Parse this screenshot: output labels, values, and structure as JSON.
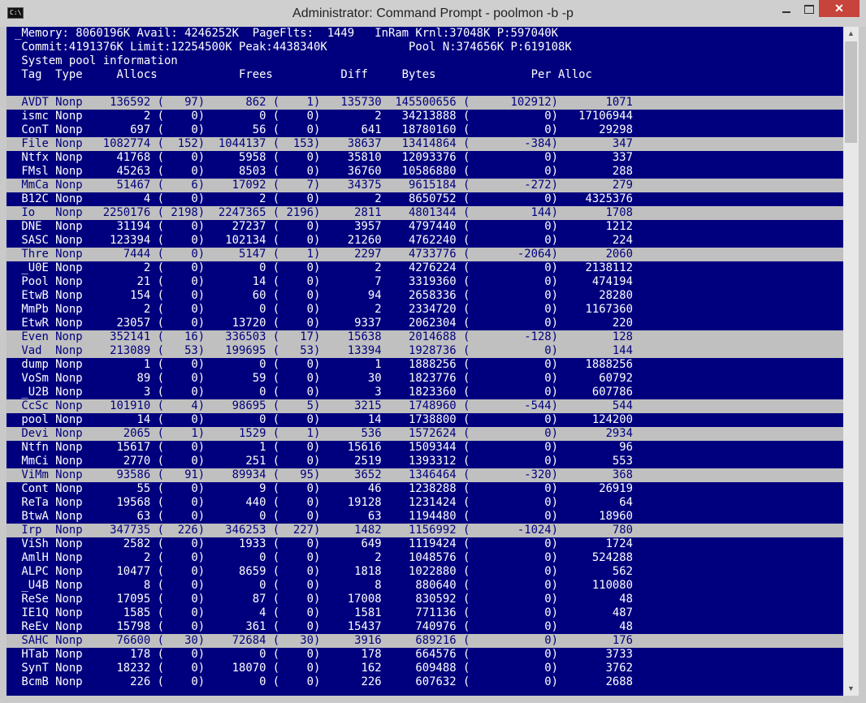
{
  "window": {
    "title": "Administrator: Command Prompt - poolmon  -b -p",
    "icon_label": "C:\\",
    "minimize_icon": "minimize-icon",
    "maximize_icon": "maximize-icon",
    "close_icon": "close-icon",
    "close_glyph": "✕"
  },
  "header": {
    "line1": "_Memory: 8060196K Avail: 4246252K  PageFlts:  1449   InRam Krnl:37048K P:597040K",
    "line2": " Commit:4191376K Limit:12254500K Peak:4438340K            Pool N:374656K P:619108K",
    "line3": " System pool information",
    "line4": " Tag  Type     Allocs            Frees          Diff     Bytes              Per Alloc",
    "line5": ""
  },
  "colors": {
    "console_bg": "#00007f",
    "console_fg": "#ffffff",
    "highlight_bg": "#c0c0c0",
    "highlight_fg": "#00007f"
  },
  "rows": [
    {
      "hl": true,
      "text": " AVDT Nonp    136592 (   97)      862 (    1)   135730  145500656 (      102912)       1071"
    },
    {
      "hl": false,
      "text": " ismc Nonp         2 (    0)        0 (    0)        2   34213888 (           0)   17106944"
    },
    {
      "hl": false,
      "text": " ConT Nonp       697 (    0)       56 (    0)      641   18780160 (           0)      29298"
    },
    {
      "hl": true,
      "text": " File Nonp   1082774 (  152)  1044137 (  153)    38637   13414864 (        -384)        347"
    },
    {
      "hl": false,
      "text": " Ntfx Nonp     41768 (    0)     5958 (    0)    35810   12093376 (           0)        337"
    },
    {
      "hl": false,
      "text": " FMsl Nonp     45263 (    0)     8503 (    0)    36760   10586880 (           0)        288"
    },
    {
      "hl": true,
      "text": " MmCa Nonp     51467 (    6)    17092 (    7)    34375    9615184 (        -272)        279"
    },
    {
      "hl": false,
      "text": " B12C Nonp         4 (    0)        2 (    0)        2    8650752 (           0)    4325376"
    },
    {
      "hl": true,
      "text": " Io   Nonp   2250176 ( 2198)  2247365 ( 2196)     2811    4801344 (         144)       1708"
    },
    {
      "hl": false,
      "text": " DNE  Nonp     31194 (    0)    27237 (    0)     3957    4797440 (           0)       1212"
    },
    {
      "hl": false,
      "text": " SASC Nonp    123394 (    0)   102134 (    0)    21260    4762240 (           0)        224"
    },
    {
      "hl": true,
      "text": " Thre Nonp      7444 (    0)     5147 (    1)     2297    4733776 (       -2064)       2060"
    },
    {
      "hl": false,
      "text": " _U0E Nonp         2 (    0)        0 (    0)        2    4276224 (           0)    2138112"
    },
    {
      "hl": false,
      "text": " Pool Nonp        21 (    0)       14 (    0)        7    3319360 (           0)     474194"
    },
    {
      "hl": false,
      "text": " EtwB Nonp       154 (    0)       60 (    0)       94    2658336 (           0)      28280"
    },
    {
      "hl": false,
      "text": " MmPb Nonp         2 (    0)        0 (    0)        2    2334720 (           0)    1167360"
    },
    {
      "hl": false,
      "text": " EtwR Nonp     23057 (    0)    13720 (    0)     9337    2062304 (           0)        220"
    },
    {
      "hl": true,
      "text": " Even Nonp    352141 (   16)   336503 (   17)    15638    2014688 (        -128)        128"
    },
    {
      "hl": true,
      "text": " Vad  Nonp    213089 (   53)   199695 (   53)    13394    1928736 (           0)        144"
    },
    {
      "hl": false,
      "text": " dump Nonp         1 (    0)        0 (    0)        1    1888256 (           0)    1888256"
    },
    {
      "hl": false,
      "text": " VoSm Nonp        89 (    0)       59 (    0)       30    1823776 (           0)      60792"
    },
    {
      "hl": false,
      "text": " _U2B Nonp         3 (    0)        0 (    0)        3    1823360 (           0)     607786"
    },
    {
      "hl": true,
      "text": " CcSc Nonp    101910 (    4)    98695 (    5)     3215    1748960 (        -544)        544"
    },
    {
      "hl": false,
      "text": " pool Nonp        14 (    0)        0 (    0)       14    1738800 (           0)     124200"
    },
    {
      "hl": true,
      "text": " Devi Nonp      2065 (    1)     1529 (    1)      536    1572624 (           0)       2934"
    },
    {
      "hl": false,
      "text": " Ntfn Nonp     15617 (    0)        1 (    0)    15616    1509344 (           0)         96"
    },
    {
      "hl": false,
      "text": " MmCi Nonp      2770 (    0)      251 (    0)     2519    1393312 (           0)        553"
    },
    {
      "hl": true,
      "text": " ViMm Nonp     93586 (   91)    89934 (   95)     3652    1346464 (        -320)        368"
    },
    {
      "hl": false,
      "text": " Cont Nonp        55 (    0)        9 (    0)       46    1238288 (           0)      26919"
    },
    {
      "hl": false,
      "text": " ReTa Nonp     19568 (    0)      440 (    0)    19128    1231424 (           0)         64"
    },
    {
      "hl": false,
      "text": " BtwA Nonp        63 (    0)        0 (    0)       63    1194480 (           0)      18960"
    },
    {
      "hl": true,
      "text": " Irp  Nonp    347735 (  226)   346253 (  227)     1482    1156992 (       -1024)        780"
    },
    {
      "hl": false,
      "text": " ViSh Nonp      2582 (    0)     1933 (    0)      649    1119424 (           0)       1724"
    },
    {
      "hl": false,
      "text": " AmlH Nonp         2 (    0)        0 (    0)        2    1048576 (           0)     524288"
    },
    {
      "hl": false,
      "text": " ALPC Nonp     10477 (    0)     8659 (    0)     1818    1022880 (           0)        562"
    },
    {
      "hl": false,
      "text": " _U4B Nonp         8 (    0)        0 (    0)        8     880640 (           0)     110080"
    },
    {
      "hl": false,
      "text": " ReSe Nonp     17095 (    0)       87 (    0)    17008     830592 (           0)         48"
    },
    {
      "hl": false,
      "text": " IE1Q Nonp      1585 (    0)        4 (    0)     1581     771136 (           0)        487"
    },
    {
      "hl": false,
      "text": " ReEv Nonp     15798 (    0)      361 (    0)    15437     740976 (           0)         48"
    },
    {
      "hl": true,
      "text": " SAHC Nonp     76600 (   30)    72684 (   30)     3916     689216 (           0)        176"
    },
    {
      "hl": false,
      "text": " HTab Nonp       178 (    0)        0 (    0)      178     664576 (           0)       3733"
    },
    {
      "hl": false,
      "text": " SynT Nonp     18232 (    0)    18070 (    0)      162     609488 (           0)       3762"
    },
    {
      "hl": false,
      "text": " BcmB Nonp       226 (    0)        0 (    0)      226     607632 (           0)       2688"
    }
  ]
}
